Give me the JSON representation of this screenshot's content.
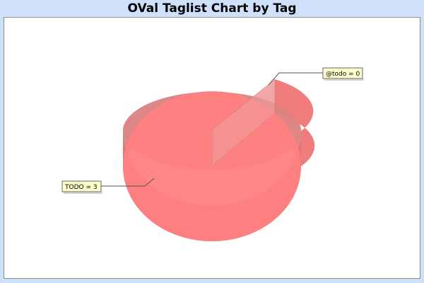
{
  "chart_data": {
    "type": "pie",
    "title": "OVal Taglist Chart by Tag",
    "slices": [
      {
        "label": "TODO",
        "value": 3,
        "callout": "TODO = 3",
        "color": "#ff8080"
      },
      {
        "label": "@todo",
        "value": 0,
        "callout": "@todo = 0",
        "color": "#e06c6c"
      }
    ],
    "style": "3d",
    "legend": "none"
  },
  "colors": {
    "background": "#cfe0fb",
    "plot_background": "#ffffff",
    "pie_top": "#ff8080",
    "pie_side": "#e07575",
    "callout_bg": "#ffffcc"
  }
}
